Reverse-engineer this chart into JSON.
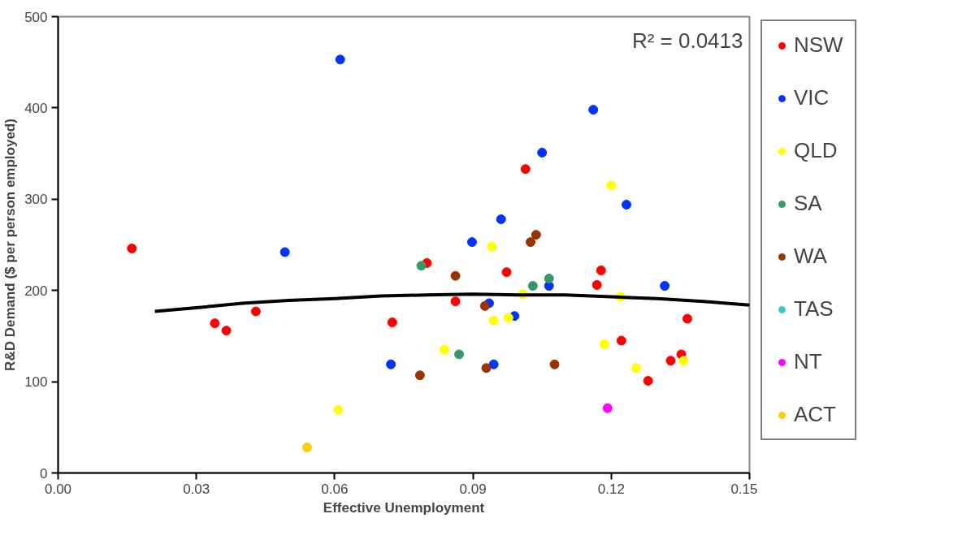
{
  "chart_data": {
    "type": "scatter",
    "xlabel": "Effective Unemployment",
    "ylabel": "R&D Demand ($ per person employed)",
    "xlim": [
      0,
      0.15
    ],
    "xticks": [
      {
        "value": 0,
        "label": "0.00"
      },
      {
        "value": 0.03,
        "label": "0.03"
      },
      {
        "value": 0.06,
        "label": "0.06"
      },
      {
        "value": 0.09,
        "label": "0.09"
      },
      {
        "value": 0.12,
        "label": "0.12"
      },
      {
        "value": 0.15,
        "label": "0.15"
      }
    ],
    "ylim": [
      0,
      500
    ],
    "yticks": [
      0,
      100,
      200,
      300,
      400,
      500
    ],
    "grid": false,
    "legend": "right",
    "marker": "circle",
    "annotations": [
      "R² = 0.0413"
    ],
    "series": [
      {
        "name": "NSW",
        "color": "#ff0000",
        "x": [
          0.016,
          0.034,
          0.0365,
          0.0429,
          0.0725,
          0.08,
          0.0862,
          0.0973,
          0.1014,
          0.1169,
          0.1178,
          0.1222,
          0.128,
          0.1329,
          0.1352,
          0.1365
        ],
        "values": [
          246,
          164,
          156,
          177,
          165,
          230,
          188,
          220,
          333,
          206,
          222,
          145,
          101,
          123,
          130,
          169
        ]
      },
      {
        "name": "VIC",
        "color": "#0033ff",
        "x": [
          0.0492,
          0.0612,
          0.0722,
          0.0898,
          0.0935,
          0.0945,
          0.0961,
          0.099,
          0.105,
          0.1065,
          0.1161,
          0.1233,
          0.1316
        ],
        "values": [
          242,
          453,
          119,
          253,
          186,
          119,
          278,
          172,
          351,
          205,
          398,
          294,
          205
        ]
      },
      {
        "name": "QLD",
        "color": "#ffff00",
        "x": [
          0.0608,
          0.0838,
          0.0941,
          0.0945,
          0.0977,
          0.1008,
          0.1185,
          0.12,
          0.122,
          0.1254,
          0.1357
        ],
        "values": [
          69,
          135,
          248,
          167,
          170,
          196,
          141,
          315,
          193,
          115,
          123
        ]
      },
      {
        "name": "SA",
        "color": "#339966",
        "x": [
          0.0788,
          0.087,
          0.103,
          0.1065
        ],
        "values": [
          227,
          130,
          205,
          213
        ]
      },
      {
        "name": "WA",
        "color": "#993300",
        "x": [
          0.0785,
          0.0862,
          0.0926,
          0.0929,
          0.1025,
          0.1037,
          0.1077
        ],
        "values": [
          107,
          216,
          183,
          115,
          253,
          261,
          119
        ]
      },
      {
        "name": "TAS",
        "color": "#33cccc"
      },
      {
        "name": "NT",
        "color": "#ff00ff",
        "x": [
          0.1192
        ],
        "values": [
          71
        ]
      },
      {
        "name": "ACT",
        "color": "#ffcc00",
        "x": [
          0.054
        ],
        "values": [
          28
        ]
      },
      {
        "type": "line",
        "marker": "none",
        "color": "#000000",
        "x": [
          0.021,
          0.03,
          0.04,
          0.05,
          0.06,
          0.07,
          0.08,
          0.09,
          0.1,
          0.11,
          0.12,
          0.13,
          0.14,
          0.15
        ],
        "values": [
          177,
          181,
          186,
          189,
          191,
          194,
          195,
          196,
          195,
          195,
          193,
          191,
          188,
          184
        ]
      }
    ]
  }
}
